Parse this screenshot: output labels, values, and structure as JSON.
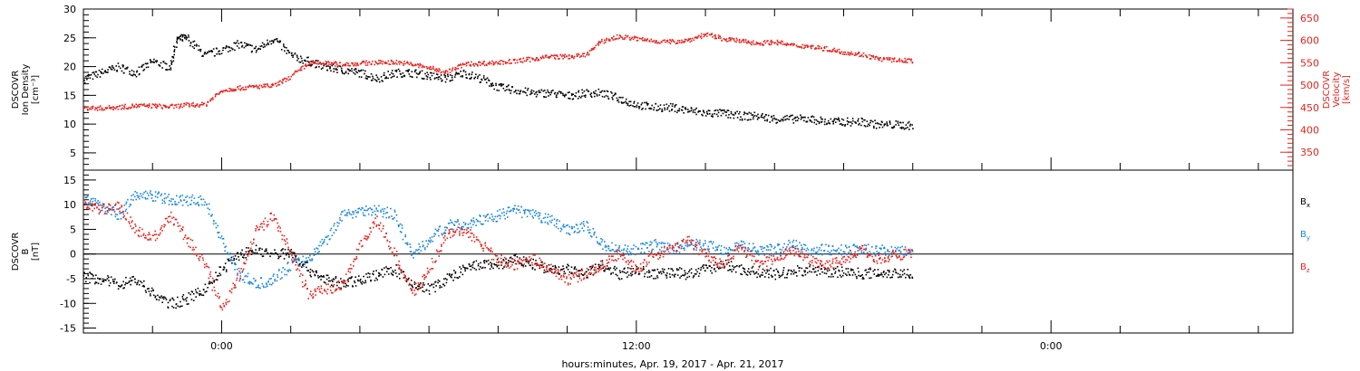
{
  "colors": {
    "density": "#000000",
    "velocity": "#e8221c",
    "bx": "#000000",
    "by": "#1a86e0",
    "bz": "#e8221c",
    "frame": "#000000"
  },
  "xaxis": {
    "label": "hours:minutes, Apr. 19, 2017 - Apr. 21, 2017",
    "ticks": [
      {
        "hours": 0,
        "label": "0:00"
      },
      {
        "hours": 12,
        "label": "12:00"
      },
      {
        "hours": 24,
        "label": "0:00"
      }
    ]
  },
  "chart_data": [
    {
      "type": "scatter",
      "panel": "top",
      "xlim_hours": [
        -4,
        31
      ],
      "left_axis": {
        "title_lines": [
          "DSCOVR",
          "Ion Density",
          "[cm⁻³]"
        ],
        "ylim": [
          2,
          30
        ],
        "ticks": [
          5,
          10,
          15,
          20,
          25,
          30
        ]
      },
      "right_axis": {
        "title_lines": [
          "DSCOVR",
          "Velocity",
          "[km/s]"
        ],
        "ylim": [
          310,
          670
        ],
        "ticks": [
          350,
          400,
          450,
          500,
          550,
          600,
          650
        ]
      },
      "series": [
        {
          "key": "density",
          "axis": "left",
          "x_hours": [
            -4,
            -3.5,
            -3,
            -2.5,
            -2,
            -1.5,
            -1.3,
            -1,
            -0.5,
            0,
            0.5,
            1,
            1.5,
            2,
            2.5,
            3,
            3.5,
            4,
            4.5,
            5,
            5.5,
            6,
            6.5,
            7,
            7.5,
            8,
            8.5,
            9,
            9.5,
            10,
            10.5,
            11,
            11.5,
            12,
            12.5,
            13,
            13.5,
            14,
            14.5,
            15,
            15.5,
            16,
            16.5,
            17,
            17.5,
            18,
            18.5,
            19,
            19.5,
            20
          ],
          "values": [
            18,
            19,
            20,
            19,
            21,
            20,
            25,
            25,
            22,
            23,
            24,
            23,
            25,
            22,
            21,
            20,
            19.5,
            19,
            18,
            19,
            19,
            18.5,
            18,
            19,
            18,
            16.5,
            16,
            15.5,
            15.5,
            15,
            15.5,
            15.5,
            14.5,
            13.5,
            13,
            13,
            12.5,
            12,
            12,
            11.5,
            11.5,
            11,
            11,
            11,
            10.5,
            10.5,
            10.5,
            10,
            10,
            9.8
          ]
        },
        {
          "key": "velocity",
          "axis": "right",
          "x_hours": [
            -4,
            -3.5,
            -3,
            -2.5,
            -2,
            -1.5,
            -1,
            -0.5,
            0,
            0.5,
            1,
            1.5,
            2,
            2.5,
            3,
            3.5,
            4,
            4.5,
            5,
            5.5,
            6,
            6.5,
            7,
            7.5,
            8,
            8.5,
            9,
            9.5,
            10,
            10.5,
            11,
            11.5,
            12,
            12.5,
            13,
            13.5,
            14,
            14.5,
            15,
            15.5,
            16,
            16.5,
            17,
            17.5,
            18,
            18.5,
            19,
            19.5,
            20
          ],
          "values": [
            450,
            450,
            452,
            455,
            455,
            453,
            457,
            458,
            490,
            495,
            498,
            500,
            520,
            550,
            550,
            548,
            550,
            552,
            553,
            548,
            540,
            530,
            548,
            550,
            552,
            555,
            560,
            565,
            565,
            568,
            600,
            610,
            605,
            600,
            598,
            602,
            615,
            605,
            600,
            595,
            598,
            590,
            588,
            582,
            575,
            570,
            560,
            557,
            556
          ]
        }
      ]
    },
    {
      "type": "scatter",
      "panel": "bottom",
      "xlim_hours": [
        -4,
        31
      ],
      "left_axis": {
        "title_lines": [
          "DSCOVR",
          "B",
          "[nT]"
        ],
        "ylim": [
          -16,
          17
        ],
        "ticks": [
          -15,
          -10,
          -5,
          0,
          5,
          10,
          15
        ]
      },
      "series": [
        {
          "key": "bx",
          "name": "B",
          "subscript": "x",
          "x_hours": [
            -4,
            -3.5,
            -3,
            -2.5,
            -2,
            -1.5,
            -1,
            -0.5,
            0,
            0.5,
            1,
            1.5,
            2,
            2.5,
            3,
            3.5,
            4,
            4.5,
            5,
            5.5,
            6,
            6.5,
            7,
            7.5,
            8,
            8.5,
            9,
            9.5,
            10,
            10.5,
            11,
            11.5,
            12,
            12.5,
            13,
            13.5,
            14,
            14.5,
            15,
            15.5,
            16,
            16.5,
            17,
            17.5,
            18,
            18.5,
            19,
            19.5,
            20
          ],
          "values": [
            -4.5,
            -5,
            -6,
            -5,
            -8,
            -10,
            -9,
            -7,
            -3,
            0,
            1,
            0,
            0.5,
            -3,
            -5,
            -6,
            -5,
            -4,
            -3,
            -6,
            -7,
            -5,
            -3,
            -2,
            -2,
            -1,
            -2,
            -3,
            -3,
            -4,
            -2,
            -4,
            -3,
            -4,
            -3.5,
            -4,
            -3,
            -2,
            -3,
            -3.5,
            -4,
            -3.5,
            -3,
            -3.5,
            -3.5,
            -3.8,
            -3.6,
            -3.7,
            -3.7
          ]
        },
        {
          "key": "by",
          "name": "B",
          "subscript": "y",
          "x_hours": [
            -4,
            -3.5,
            -3,
            -2.5,
            -2,
            -1.5,
            -1,
            -0.5,
            0,
            0.5,
            1,
            1.5,
            2,
            2.5,
            3,
            3.5,
            4,
            4.5,
            5,
            5.5,
            6,
            6.5,
            7,
            7.5,
            8,
            8.5,
            9,
            9.5,
            10,
            10.5,
            11,
            11.5,
            12,
            12.5,
            13,
            13.5,
            14,
            14.5,
            15,
            15.5,
            16,
            16.5,
            17,
            17.5,
            18,
            18.5,
            19,
            19.5,
            20
          ],
          "values": [
            11,
            10,
            8,
            12,
            12,
            11,
            11,
            11,
            3,
            -4,
            -6,
            -5,
            -2,
            -1,
            3,
            8,
            9,
            9,
            8,
            0,
            3,
            6,
            6,
            7,
            8,
            9,
            8,
            7,
            5,
            6,
            2,
            1,
            1,
            2,
            1,
            2,
            2,
            1,
            2,
            1,
            1,
            2,
            1,
            1,
            1,
            1,
            1,
            0.5,
            1
          ]
        },
        {
          "key": "bz",
          "name": "B",
          "subscript": "z",
          "x_hours": [
            -4,
            -3.5,
            -3,
            -2.5,
            -2,
            -1.5,
            -1,
            -0.5,
            0,
            0.5,
            1,
            1.5,
            2,
            2.5,
            3,
            3.5,
            4,
            4.5,
            5,
            5.5,
            6,
            6.5,
            7,
            7.5,
            8,
            8.5,
            9,
            9.5,
            10,
            10.5,
            11,
            11.5,
            12,
            12.5,
            13,
            13.5,
            14,
            14.5,
            15,
            15.5,
            16,
            16.5,
            17,
            17.5,
            18,
            18.5,
            19,
            19.5,
            20
          ],
          "values": [
            10,
            9,
            10,
            5,
            3,
            8,
            3,
            -2,
            -11,
            -4,
            5,
            8,
            0,
            -8,
            -7,
            -6,
            2,
            7,
            0,
            -8,
            -3,
            4,
            5,
            2,
            -1,
            -2,
            -1,
            -3,
            -5,
            -4,
            -2,
            0,
            -3,
            0,
            1,
            3,
            0,
            -2,
            2,
            -2,
            -1,
            1,
            -1,
            -2,
            -1,
            1,
            -1,
            0,
            0
          ]
        }
      ]
    }
  ]
}
